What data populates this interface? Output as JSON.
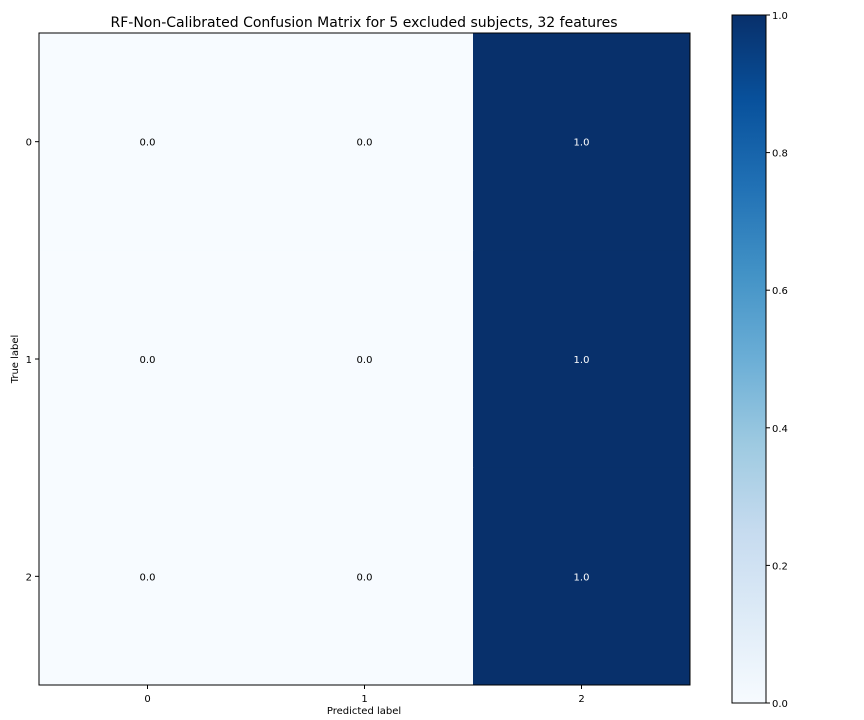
{
  "chart_data": {
    "type": "heatmap",
    "title": "RF-Non-Calibrated Confusion Matrix for 5 excluded subjects, 32 features",
    "xlabel": "Predicted label",
    "ylabel": "True label",
    "x_categories": [
      "0",
      "1",
      "2"
    ],
    "y_categories": [
      "0",
      "1",
      "2"
    ],
    "values": [
      [
        0.0,
        0.0,
        1.0
      ],
      [
        0.0,
        0.0,
        1.0
      ],
      [
        0.0,
        0.0,
        1.0
      ]
    ],
    "cell_labels": [
      [
        "0.0",
        "0.0",
        "1.0"
      ],
      [
        "0.0",
        "0.0",
        "1.0"
      ],
      [
        "0.0",
        "0.0",
        "1.0"
      ]
    ],
    "colormap": "Blues",
    "colormap_stops": [
      "#f7fbff",
      "#deebf7",
      "#c6dbef",
      "#9ecae1",
      "#6baed6",
      "#4292c6",
      "#2171b5",
      "#08519c",
      "#08306b"
    ],
    "colorbar": {
      "range": [
        0.0,
        1.0
      ],
      "ticks": [
        0.0,
        0.2,
        0.4,
        0.6,
        0.8,
        1.0
      ],
      "tick_labels": [
        "0.0",
        "0.2",
        "0.4",
        "0.6",
        "0.8",
        "1.0"
      ]
    },
    "grid": false,
    "legend": "none"
  }
}
